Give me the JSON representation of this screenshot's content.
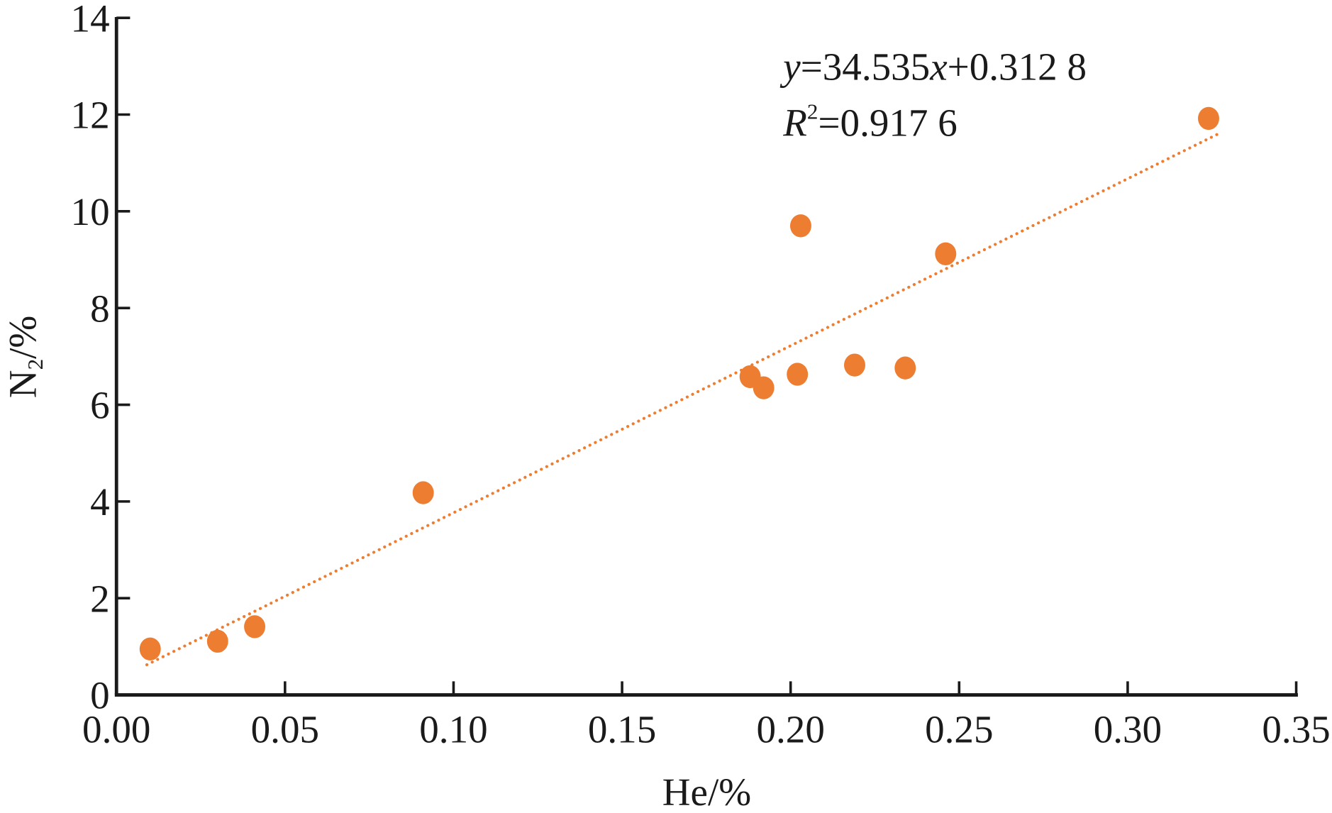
{
  "chart_data": {
    "type": "scatter",
    "title": "",
    "xlabel": "He/%",
    "ylabel_main": "N",
    "ylabel_sub": "2",
    "ylabel_tail": "/%",
    "xlim": [
      0,
      0.35
    ],
    "ylim": [
      0,
      14
    ],
    "xticks": [
      "0.00",
      "0.05",
      "0.10",
      "0.15",
      "0.20",
      "0.25",
      "0.30",
      "0.35"
    ],
    "yticks": [
      "0",
      "2",
      "4",
      "6",
      "8",
      "10",
      "12",
      "14"
    ],
    "grid": false,
    "marker_color": "#ED7D31",
    "points": [
      {
        "x": 0.01,
        "y": 0.95
      },
      {
        "x": 0.03,
        "y": 1.11
      },
      {
        "x": 0.041,
        "y": 1.41
      },
      {
        "x": 0.091,
        "y": 4.18
      },
      {
        "x": 0.188,
        "y": 6.58
      },
      {
        "x": 0.192,
        "y": 6.35
      },
      {
        "x": 0.202,
        "y": 6.63
      },
      {
        "x": 0.203,
        "y": 9.7
      },
      {
        "x": 0.219,
        "y": 6.82
      },
      {
        "x": 0.234,
        "y": 6.76
      },
      {
        "x": 0.246,
        "y": 9.12
      },
      {
        "x": 0.324,
        "y": 11.92
      }
    ],
    "trendline": {
      "slope": 34.535,
      "intercept": 0.3128,
      "x_range": [
        0.009,
        0.327
      ],
      "style": "dotted"
    },
    "annotations": {
      "eq_y": "y",
      "eq_body": "=34.535",
      "eq_x": "x",
      "eq_tail": "+0.312 8",
      "r_label": "R",
      "r_sup": "2",
      "r_value": "=0.917 6"
    }
  }
}
